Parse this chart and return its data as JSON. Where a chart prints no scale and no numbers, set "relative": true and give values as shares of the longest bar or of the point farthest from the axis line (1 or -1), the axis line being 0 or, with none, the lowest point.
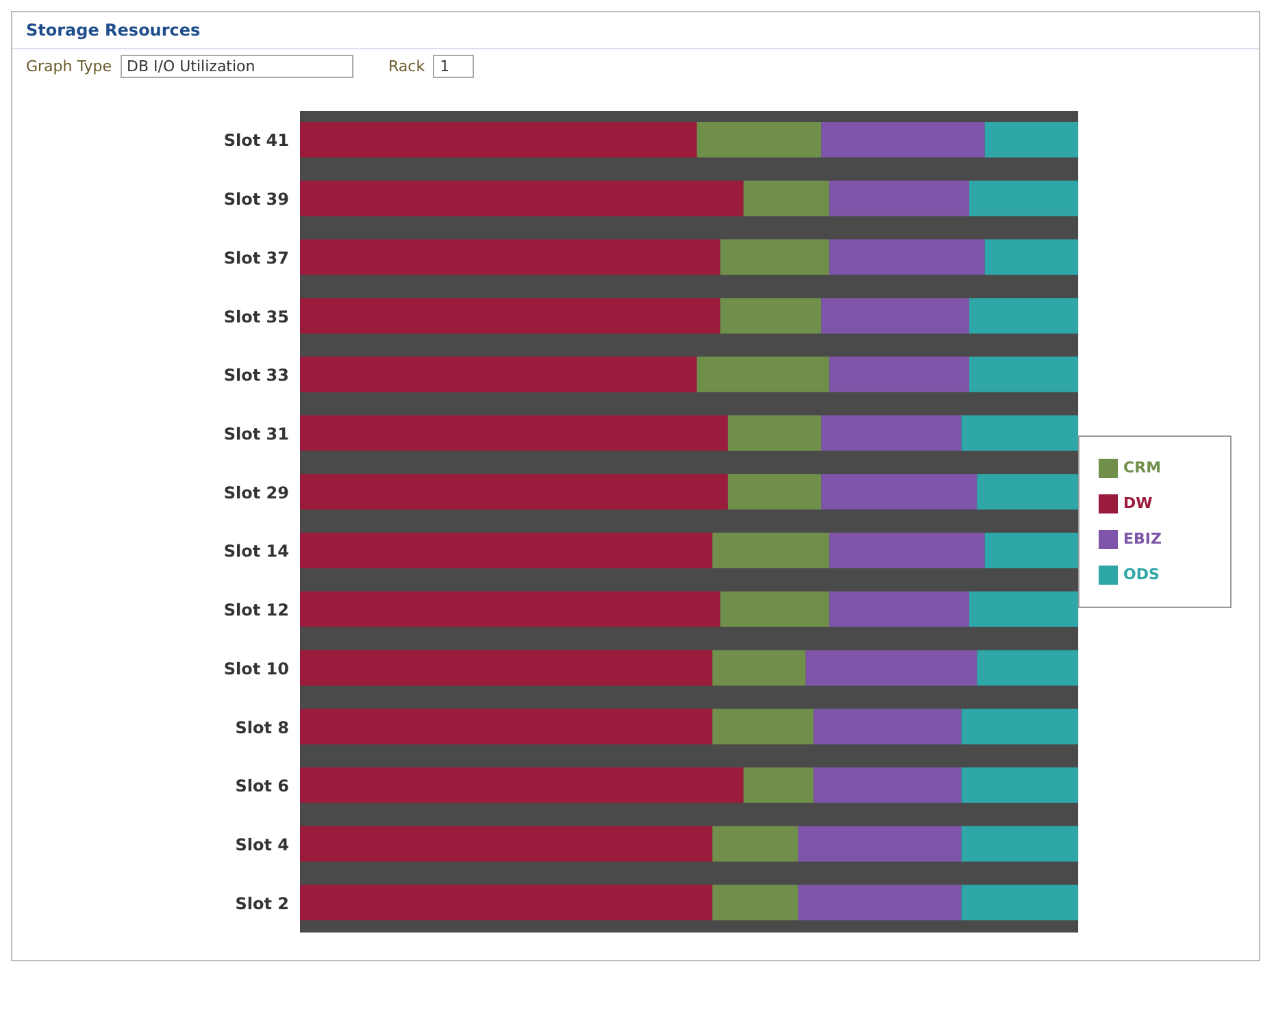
{
  "chart_data": {
    "type": "bar",
    "title": "Storage Resources",
    "annotations": [
      "Graph Type",
      "DB I/O Utilization",
      "Rack",
      "1"
    ],
    "orientation": "horizontal",
    "stacked": true,
    "relative": true,
    "legend": "right",
    "categories": [
      "Slot 41",
      "Slot 39",
      "Slot 37",
      "Slot 35",
      "Slot 33",
      "Slot 31",
      "Slot 29",
      "Slot 14",
      "Slot 12",
      "Slot 10",
      "Slot 8",
      "Slot 6",
      "Slot 4",
      "Slot 2"
    ],
    "series": [
      {
        "name": "DW",
        "color": "#9b1b3c",
        "values": [
          0.51,
          0.57,
          0.54,
          0.54,
          0.51,
          0.55,
          0.55,
          0.53,
          0.54,
          0.53,
          0.53,
          0.57,
          0.53,
          0.53
        ]
      },
      {
        "name": "CRM",
        "color": "#6f8f4a",
        "values": [
          0.16,
          0.11,
          0.14,
          0.13,
          0.17,
          0.12,
          0.12,
          0.15,
          0.14,
          0.12,
          0.13,
          0.09,
          0.11,
          0.11
        ]
      },
      {
        "name": "EBIZ",
        "color": "#7e55a8",
        "values": [
          0.21,
          0.18,
          0.2,
          0.19,
          0.18,
          0.18,
          0.2,
          0.2,
          0.18,
          0.22,
          0.19,
          0.19,
          0.21,
          0.21
        ]
      },
      {
        "name": "ODS",
        "color": "#2fa6a8",
        "values": [
          0.12,
          0.14,
          0.12,
          0.14,
          0.14,
          0.15,
          0.13,
          0.12,
          0.14,
          0.13,
          0.15,
          0.15,
          0.15,
          0.15
        ]
      }
    ]
  }
}
